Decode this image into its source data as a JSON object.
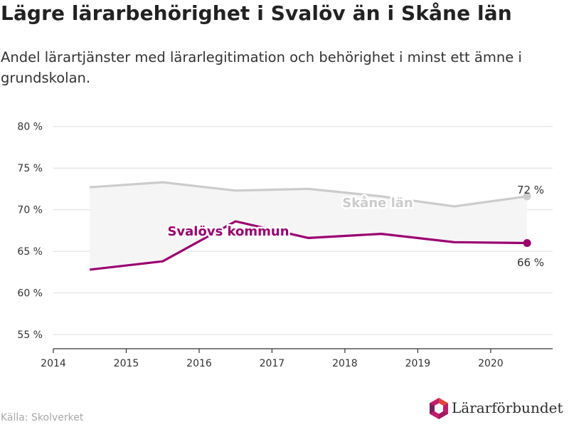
{
  "header": {
    "title": "Lägre lärarbehörighet i Svalöv än i Skåne län",
    "subtitle": "Andel lärartjänster med lärarlegitimation och behörighet i minst ett ämne i grundskolan."
  },
  "footer": {
    "source": "Källa: Skolverket",
    "brand": "Lärarförbundet"
  },
  "colors": {
    "svalov": "#9b0070",
    "skane": "#cccccc",
    "band": "#f5f5f5",
    "grid": "#dddddd",
    "axis": "#333333"
  },
  "chart_data": {
    "type": "line",
    "title": "Lägre lärarbehörighet i Svalöv än i Skåne län",
    "subtitle": "Andel lärartjänster med lärarlegitimation och behörighet i minst ett ämne i grundskolan.",
    "x": [
      2014.5,
      2015.5,
      2016.5,
      2017.5,
      2018.5,
      2019.5,
      2020.5
    ],
    "xlim": [
      2014,
      2020.85
    ],
    "x_ticks": [
      {
        "value": 2014,
        "label": "2014"
      },
      {
        "value": 2015,
        "label": "2015"
      },
      {
        "value": 2016,
        "label": "2016"
      },
      {
        "value": 2017,
        "label": "2017"
      },
      {
        "value": 2018,
        "label": "2018"
      },
      {
        "value": 2019,
        "label": "2019"
      },
      {
        "value": 2020,
        "label": "2020"
      }
    ],
    "ylim": [
      53.3,
      81
    ],
    "y_ticks": [
      {
        "value": 55,
        "label": "55 %"
      },
      {
        "value": 60,
        "label": "60 %"
      },
      {
        "value": 65,
        "label": "65 %"
      },
      {
        "value": 70,
        "label": "70 %"
      },
      {
        "value": 75,
        "label": "75 %"
      },
      {
        "value": 80,
        "label": "80 %"
      }
    ],
    "grid": true,
    "series": [
      {
        "name": "Skåne län",
        "values": [
          72.7,
          73.3,
          72.3,
          72.5,
          71.6,
          70.4,
          71.6
        ],
        "end_label": "72 %"
      },
      {
        "name": "Svalövs kommun",
        "values": [
          62.8,
          63.8,
          68.6,
          66.6,
          67.1,
          66.1,
          66.0
        ],
        "end_label": "66 %"
      }
    ]
  }
}
